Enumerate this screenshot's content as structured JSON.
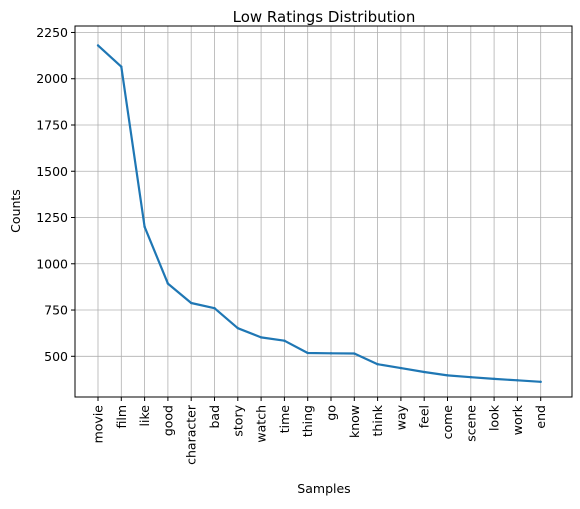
{
  "chart_data": {
    "type": "line",
    "title": "Low Ratings Distribution",
    "xlabel": "Samples",
    "ylabel": "Counts",
    "categories": [
      "movie",
      "film",
      "like",
      "good",
      "character",
      "bad",
      "story",
      "watch",
      "time",
      "thing",
      "go",
      "know",
      "think",
      "way",
      "feel",
      "come",
      "scene",
      "look",
      "work",
      "end"
    ],
    "series": [
      {
        "values": [
          2180,
          2065,
          1200,
          893,
          788,
          760,
          652,
          602,
          584,
          518,
          516,
          515,
          457,
          436,
          415,
          397,
          387,
          378,
          370,
          362
        ],
        "color": "#1f77b4"
      }
    ],
    "ylim": [
      280,
      2285
    ],
    "yticks": [
      500,
      750,
      1000,
      1250,
      1500,
      1750,
      2000,
      2250
    ],
    "grid": true
  }
}
